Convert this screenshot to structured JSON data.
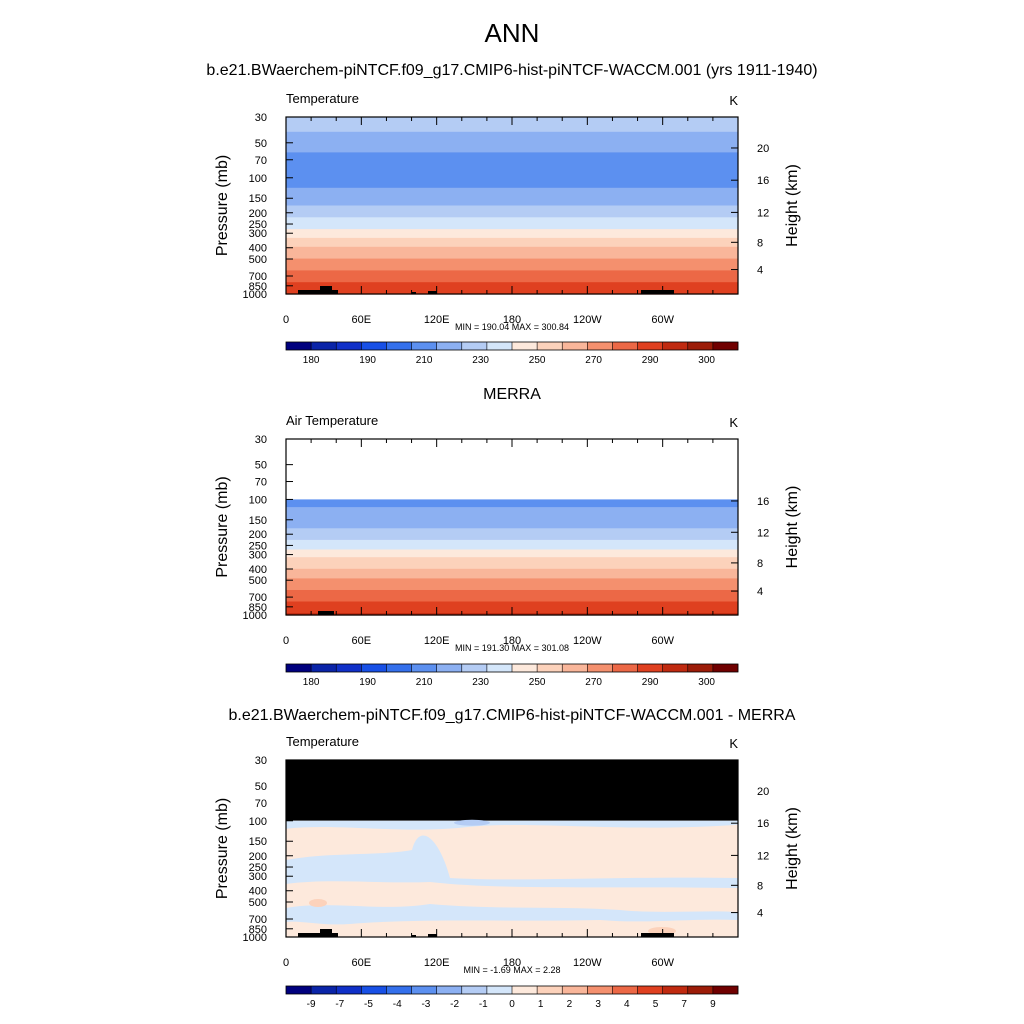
{
  "figure": {
    "title": "ANN"
  },
  "chart_data": [
    {
      "type": "heatmap",
      "panel_title": "b.e21.BWaerchem-piNTCF.f09_g17.CMIP6-hist-piNTCF-WACCM.001 (yrs 1911-1940)",
      "variable": "Temperature",
      "units": "K",
      "ylabel": "Pressure (mb)",
      "ylabel_right": "Height (km)",
      "xlabel": "",
      "x_ticks": [
        "0",
        "60E",
        "120E",
        "180",
        "120W",
        "60W"
      ],
      "y_ticks": [
        "30",
        "50",
        "70",
        "100",
        "150",
        "200",
        "250",
        "300",
        "400",
        "500",
        "700",
        "850",
        "1000"
      ],
      "height_ticks": [
        "20",
        "16",
        "12",
        "8",
        "4"
      ],
      "ylim": [
        1000,
        30
      ],
      "stats": "MIN = 190.04  MAX = 300.84",
      "colorbar_labels": [
        "180",
        "190",
        "210",
        "230",
        "250",
        "270",
        "290",
        "300"
      ],
      "profile_levels": [
        30,
        50,
        70,
        100,
        150,
        200,
        250,
        300,
        400,
        500,
        700,
        850,
        1000
      ],
      "profile_values": [
        218,
        205,
        197,
        195,
        206,
        215,
        226,
        235,
        250,
        260,
        275,
        283,
        290
      ]
    },
    {
      "type": "heatmap",
      "panel_title": "MERRA",
      "variable": "Air Temperature",
      "units": "K",
      "ylabel": "Pressure (mb)",
      "ylabel_right": "Height (km)",
      "xlabel": "",
      "x_ticks": [
        "0",
        "60E",
        "120E",
        "180",
        "120W",
        "60W"
      ],
      "y_ticks": [
        "30",
        "50",
        "70",
        "100",
        "150",
        "200",
        "250",
        "300",
        "400",
        "500",
        "700",
        "850",
        "1000"
      ],
      "height_ticks": [
        "16",
        "12",
        "8",
        "4"
      ],
      "ylim": [
        1000,
        30
      ],
      "data_top": 100,
      "stats": "MIN = 191.30  MAX = 301.08",
      "colorbar_labels": [
        "180",
        "190",
        "210",
        "230",
        "250",
        "270",
        "290",
        "300"
      ],
      "profile_levels": [
        100,
        150,
        200,
        250,
        300,
        400,
        500,
        700,
        850,
        1000
      ],
      "profile_values": [
        197,
        205,
        213,
        225,
        237,
        250,
        262,
        276,
        284,
        291
      ]
    },
    {
      "type": "heatmap",
      "panel_title": "b.e21.BWaerchem-piNTCF.f09_g17.CMIP6-hist-piNTCF-WACCM.001 - MERRA",
      "variable": "Temperature",
      "units": "K",
      "ylabel": "Pressure (mb)",
      "ylabel_right": "Height (km)",
      "xlabel": "",
      "x_ticks": [
        "0",
        "60E",
        "120E",
        "180",
        "120W",
        "60W"
      ],
      "y_ticks": [
        "30",
        "50",
        "70",
        "100",
        "150",
        "200",
        "250",
        "300",
        "400",
        "500",
        "700",
        "850",
        "1000"
      ],
      "height_ticks": [
        "20",
        "16",
        "12",
        "8",
        "4"
      ],
      "ylim": [
        1000,
        30
      ],
      "missing_above": 100,
      "stats": "MIN =  -1.69  MAX =   2.28",
      "colorbar_labels": [
        "-9",
        "-7",
        "-5",
        "-4",
        "-3",
        "-2",
        "-1",
        "0",
        "1",
        "2",
        "3",
        "4",
        "5",
        "7",
        "9"
      ],
      "profile_levels": [
        100,
        1000
      ],
      "profile_values": [
        0,
        0
      ]
    }
  ],
  "colormap": [
    "#00007e",
    "#0a24a8",
    "#1030c8",
    "#1850e6",
    "#3470ec",
    "#5c90f0",
    "#8cb0f2",
    "#b4ccf4",
    "#d4e6fa",
    "#fde9dc",
    "#fcd2bb",
    "#f9b69a",
    "#f4906e",
    "#ec6846",
    "#df4020",
    "#c02a10",
    "#9c1c08",
    "#700000"
  ],
  "colors": {
    "topo_mask": "#000000",
    "missing_fill": "#000000",
    "frame": "#000000"
  }
}
